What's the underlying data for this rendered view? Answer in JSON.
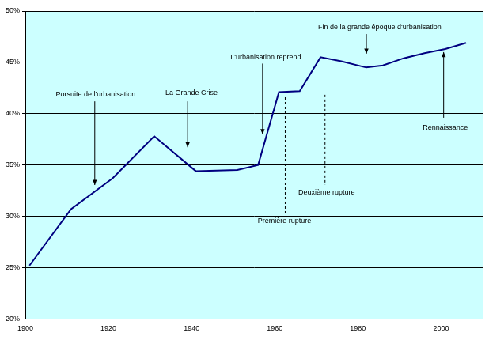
{
  "chart_data": {
    "type": "line",
    "x": [
      1901,
      1911,
      1921,
      1931,
      1941,
      1951,
      1956,
      1961,
      1966,
      1971,
      1976,
      1982,
      1986,
      1991,
      1996,
      2001,
      2006
    ],
    "values": [
      25.2,
      30.7,
      33.7,
      37.8,
      34.4,
      34.5,
      35.0,
      42.1,
      42.2,
      45.5,
      45.1,
      44.5,
      44.7,
      45.4,
      45.9,
      46.3,
      46.9
    ],
    "color": "#000080",
    "xlim": [
      1900,
      2010
    ],
    "xticks": [
      1900,
      1920,
      1940,
      1960,
      1980,
      2000
    ],
    "ylim": [
      20,
      50
    ],
    "yticks": [
      {
        "value": 20,
        "label": "20%"
      },
      {
        "value": 25,
        "label": "25%"
      },
      {
        "value": 30,
        "label": "30%"
      },
      {
        "value": 35,
        "label": "35%"
      },
      {
        "value": 40,
        "label": "40%"
      },
      {
        "value": 45,
        "label": "45%"
      },
      {
        "value": 50,
        "label": "50%"
      }
    ],
    "grid": true,
    "annotations": [
      "Porsuite de l'urbanisation",
      "La Grande Crise",
      "L'urbanisation reprend",
      "Fin de la grande époque d'urbanisation",
      "Rennaissance",
      "Première rupture",
      "Deuxième rupture"
    ]
  }
}
